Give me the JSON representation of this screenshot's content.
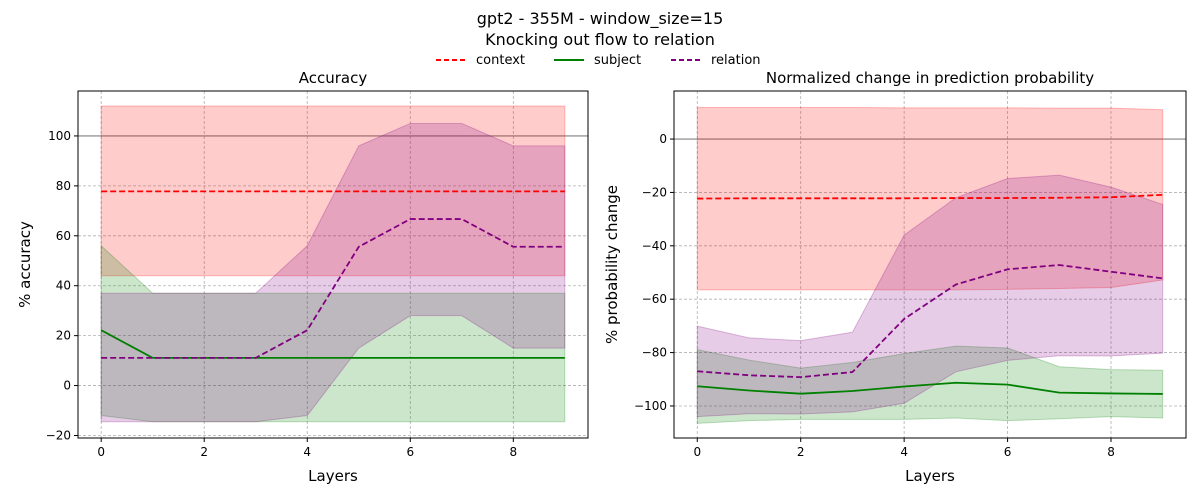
{
  "figure": {
    "title_line1": "gpt2 - 355M - window_size=15",
    "title_line2": "Knocking out flow to relation"
  },
  "legend": {
    "entries": [
      {
        "label": "context",
        "color": "#ff0000",
        "dash": true
      },
      {
        "label": "subject",
        "color": "#008000",
        "dash": false
      },
      {
        "label": "relation",
        "color": "#800080",
        "dash": true
      }
    ]
  },
  "colors": {
    "context": "#ff0000",
    "subject": "#008000",
    "relation": "#800080",
    "reference_line": "#808080"
  },
  "chart_data": [
    {
      "type": "line",
      "title": "Accuracy",
      "xlabel": "Layers",
      "ylabel": "% accuracy",
      "xlim": [
        -0.45,
        9.45
      ],
      "ylim": [
        -21,
        118
      ],
      "xticks": [
        0,
        2,
        4,
        6,
        8
      ],
      "yticks": [
        -20,
        0,
        20,
        40,
        60,
        80,
        100
      ],
      "grid": true,
      "reference_line": 100,
      "x": [
        0,
        1,
        2,
        3,
        4,
        5,
        6,
        7,
        8,
        9
      ],
      "series": [
        {
          "name": "context",
          "values": [
            77.8,
            77.8,
            77.8,
            77.8,
            77.8,
            77.8,
            77.8,
            77.8,
            77.8,
            77.8
          ],
          "lower": [
            44,
            44,
            44,
            44,
            44,
            44,
            44,
            44,
            44,
            44
          ],
          "upper": [
            112,
            112,
            112,
            112,
            112,
            112,
            112,
            112,
            112,
            112
          ]
        },
        {
          "name": "subject",
          "values": [
            22.2,
            11.1,
            11.1,
            11.1,
            11.1,
            11.1,
            11.1,
            11.1,
            11.1,
            11.1
          ],
          "lower": [
            -12,
            -14.5,
            -14.5,
            -14.5,
            -14.5,
            -14.5,
            -14.5,
            -14.5,
            -14.5,
            -14.5
          ],
          "upper": [
            56,
            37,
            37,
            37,
            37,
            37,
            37,
            37,
            37,
            37
          ]
        },
        {
          "name": "relation",
          "values": [
            11.1,
            11.1,
            11.1,
            11.1,
            22.2,
            55.6,
            66.7,
            66.7,
            55.6,
            55.6
          ],
          "lower": [
            -14.5,
            -14.5,
            -14.5,
            -14.5,
            -12,
            15,
            28,
            28,
            15,
            15
          ],
          "upper": [
            37,
            37,
            37,
            37,
            56,
            96,
            105,
            105,
            96,
            96
          ]
        }
      ]
    },
    {
      "type": "line",
      "title": "Normalized change in prediction probability",
      "xlabel": "Layers",
      "ylabel": "% probability change",
      "xlim": [
        -0.45,
        9.45
      ],
      "ylim": [
        -112,
        18
      ],
      "xticks": [
        0,
        2,
        4,
        6,
        8
      ],
      "yticks": [
        -100,
        -80,
        -60,
        -40,
        -20,
        0
      ],
      "grid": true,
      "reference_line": 0,
      "x": [
        0,
        1,
        2,
        3,
        4,
        5,
        6,
        7,
        8,
        9
      ],
      "series": [
        {
          "name": "context",
          "values": [
            -22.3,
            -22.2,
            -22.2,
            -22.2,
            -22.2,
            -22.1,
            -22.1,
            -22.0,
            -21.8,
            -20.9
          ],
          "lower": [
            -56.5,
            -56.5,
            -56.5,
            -56.5,
            -56.5,
            -56.5,
            -56.3,
            -56.0,
            -55.6,
            -52.8
          ],
          "upper": [
            11.8,
            11.8,
            11.8,
            11.8,
            11.7,
            11.7,
            11.7,
            11.6,
            11.6,
            11.0
          ]
        },
        {
          "name": "subject",
          "values": [
            -92.6,
            -94.2,
            -95.4,
            -94.4,
            -92.7,
            -91.3,
            -92.0,
            -95.0,
            -95.3,
            -95.5
          ],
          "lower": [
            -106.5,
            -105.5,
            -105.0,
            -105.0,
            -105.0,
            -104.5,
            -105.5,
            -104.8,
            -104.0,
            -104.5
          ],
          "upper": [
            -78.9,
            -82.8,
            -85.8,
            -83.7,
            -80.4,
            -77.6,
            -78.3,
            -85.3,
            -86.4,
            -86.6
          ]
        },
        {
          "name": "relation",
          "values": [
            -87.0,
            -88.5,
            -89.2,
            -87.3,
            -67.4,
            -54.5,
            -48.8,
            -47.2,
            -49.7,
            -52.2
          ],
          "lower": [
            -104.0,
            -102.9,
            -103.0,
            -102.2,
            -99.0,
            -87.2,
            -82.9,
            -81.2,
            -81.3,
            -80.2
          ],
          "upper": [
            -70.1,
            -74.5,
            -75.5,
            -72.4,
            -36.0,
            -22.0,
            -14.8,
            -13.5,
            -18.0,
            -24.5
          ]
        }
      ]
    }
  ]
}
